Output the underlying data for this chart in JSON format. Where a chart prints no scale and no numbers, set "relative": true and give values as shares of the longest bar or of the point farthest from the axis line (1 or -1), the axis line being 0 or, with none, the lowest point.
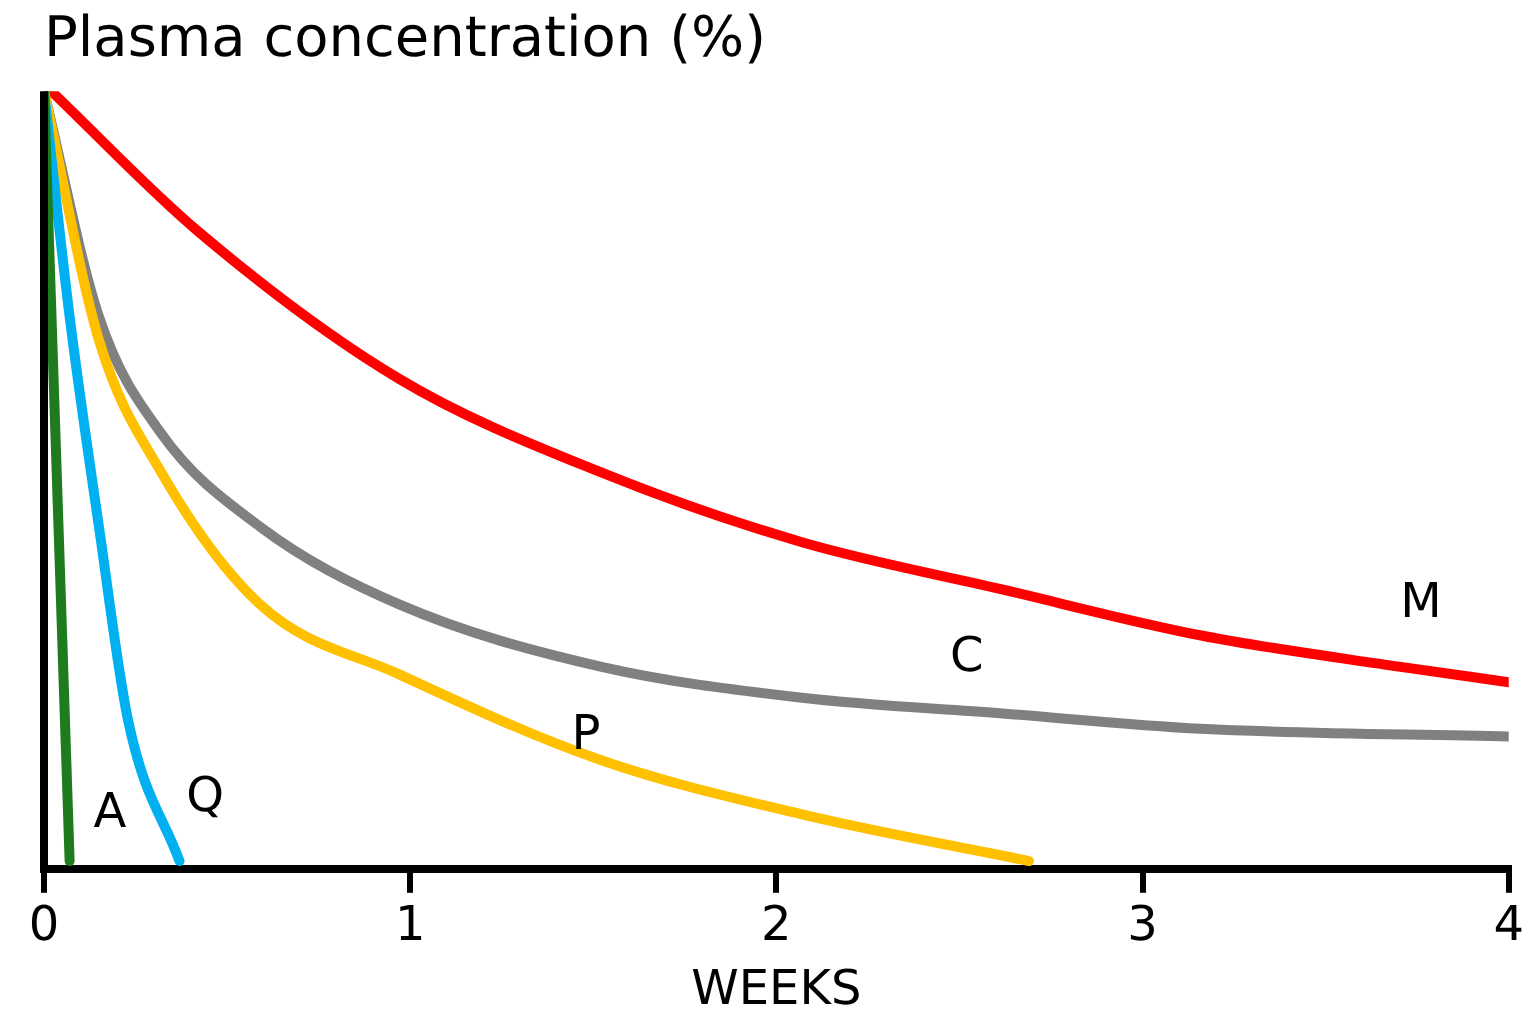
{
  "chart_data": {
    "type": "line",
    "title": "Plasma concentration (%)",
    "xlabel": "WEEKS",
    "relative": true,
    "xlim": [
      0,
      4
    ],
    "xticks": [
      0,
      1,
      2,
      3,
      4
    ],
    "grid": false,
    "legend": false,
    "marker": "none",
    "line_style": "solid",
    "series": [
      {
        "name": "A",
        "color": "#1e7b1e",
        "x": [
          0,
          0.07
        ],
        "values": [
          1,
          0.01
        ]
      },
      {
        "name": "Q",
        "color": "#00b0f0",
        "x": [
          0,
          0.07,
          0.15,
          0.23,
          0.37
        ],
        "values": [
          1,
          0.71,
          0.44,
          0.19,
          0.01
        ]
      },
      {
        "name": "P",
        "color": "#ffc000",
        "x": [
          0,
          0.15,
          0.32,
          0.59,
          0.97,
          1.52,
          2.07,
          2.69
        ],
        "values": [
          1,
          0.68,
          0.51,
          0.34,
          0.25,
          0.14,
          0.07,
          0.01
        ]
      },
      {
        "name": "C",
        "color": "#808080",
        "x": [
          0,
          0.15,
          0.32,
          0.59,
          0.97,
          1.52,
          2.07,
          2.61,
          3.16,
          4
        ],
        "values": [
          1,
          0.71,
          0.56,
          0.44,
          0.34,
          0.26,
          0.22,
          0.2,
          0.18,
          0.17
        ]
      },
      {
        "name": "M",
        "color": "#ff0000",
        "x": [
          0.02,
          0.42,
          0.97,
          1.52,
          2.07,
          2.61,
          3.16,
          3.7,
          4
        ],
        "values": [
          1,
          0.82,
          0.63,
          0.51,
          0.42,
          0.36,
          0.3,
          0.26,
          0.24
        ]
      }
    ]
  }
}
